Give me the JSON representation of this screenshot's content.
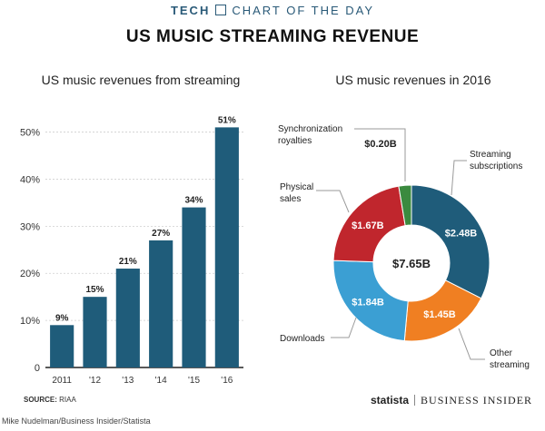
{
  "banner": {
    "left": "TECH",
    "right": "CHART OF THE DAY"
  },
  "title": "US MUSIC STREAMING REVENUE",
  "footer": {
    "source_label": "SOURCE:",
    "source_value": "RIAA",
    "logo_statista": "statista",
    "logo_bi": "BUSINESS INSIDER",
    "credit": "Mike Nudelman/Business Insider/Statista"
  },
  "colors": {
    "bar": "#1f5c7a",
    "streaming_subscriptions": "#1f5c7a",
    "other_streaming": "#f07f22",
    "downloads": "#3b9fd3",
    "physical_sales": "#c0262d",
    "synchronization_royalties": "#3b8a3f"
  },
  "chart_data": [
    {
      "type": "bar",
      "title": "US music revenues from streaming",
      "categories": [
        "2011",
        "'12",
        "'13",
        "'14",
        "'15",
        "'16"
      ],
      "values": [
        9,
        15,
        21,
        27,
        34,
        51
      ],
      "value_labels": [
        "9%",
        "15%",
        "21%",
        "27%",
        "34%",
        "51%"
      ],
      "yticks": [
        0,
        10,
        20,
        30,
        40,
        50
      ],
      "ytick_labels": [
        "0",
        "10%",
        "20%",
        "30%",
        "40%",
        "50%"
      ],
      "ylim": [
        0,
        53
      ],
      "grid": true
    },
    {
      "type": "pie",
      "title": "US music revenues in 2016",
      "center_label": "$7.65B",
      "slices": [
        {
          "name": "Streaming subscriptions",
          "value": 2.48,
          "label": "$2.48B"
        },
        {
          "name": "Other streaming",
          "value": 1.45,
          "label": "$1.45B"
        },
        {
          "name": "Downloads",
          "value": 1.84,
          "label": "$1.84B"
        },
        {
          "name": "Physical sales",
          "value": 1.67,
          "label": "$1.67B"
        },
        {
          "name": "Synchronization royalties",
          "value": 0.2,
          "label": "$0.20B"
        }
      ],
      "callouts": {
        "streaming_subscriptions": [
          "Streaming",
          "subscriptions"
        ],
        "other_streaming": [
          "Other",
          "streaming"
        ],
        "downloads": [
          "Downloads"
        ],
        "physical_sales": [
          "Physical",
          "sales"
        ],
        "synchronization_royalties": [
          "Synchronization",
          "royalties"
        ]
      }
    }
  ]
}
